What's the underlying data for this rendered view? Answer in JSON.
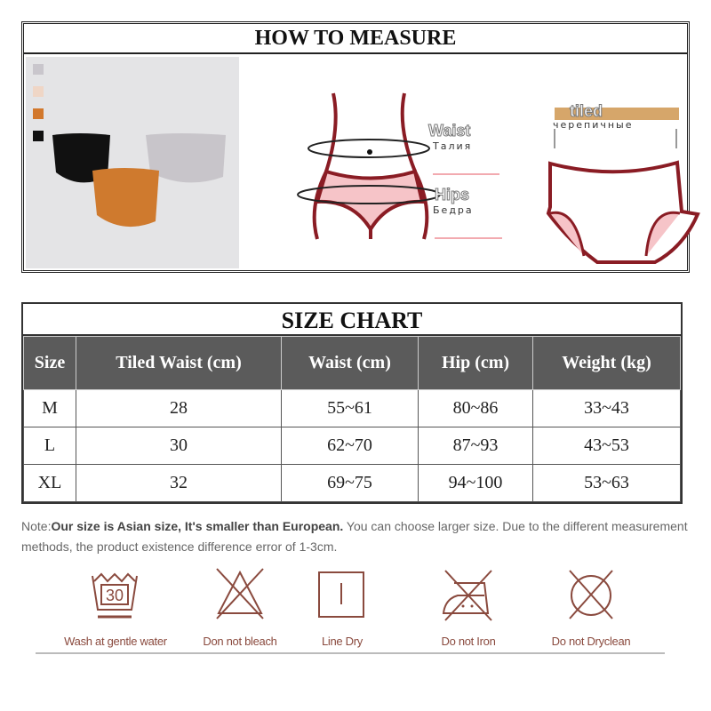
{
  "measure": {
    "title": "HOW TO MEASURE",
    "waist_label": "Waist",
    "waist_ru": "Талия",
    "hips_label": "Hips",
    "hips_ru": "Бедра",
    "tiled_label": "tiled",
    "tiled_ru": "черепичные",
    "swatch_colors": [
      "#c9c6cc",
      "#efd6c6",
      "#d2782c",
      "#111111"
    ]
  },
  "size_chart": {
    "title": "SIZE CHART",
    "headers": [
      "Size",
      "Tiled Waist (cm)",
      "Waist (cm)",
      "Hip (cm)",
      "Weight (kg)"
    ],
    "rows": [
      [
        "M",
        "28",
        "55~61",
        "80~86",
        "33~43"
      ],
      [
        "L",
        "30",
        "62~70",
        "87~93",
        "43~53"
      ],
      [
        "XL",
        "32",
        "69~75",
        "94~100",
        "53~63"
      ]
    ]
  },
  "note": {
    "prefix": "Note:",
    "bold": "Our size is Asian size, It's smaller than European.",
    "rest": " You can choose larger size. Due to the different measurement methods, the product existence difference error of 1-3cm."
  },
  "care": [
    {
      "icon": "wash-30-icon",
      "label": "Wash at gentle water",
      "temp": "30"
    },
    {
      "icon": "no-bleach-icon",
      "label": "Don not bleach"
    },
    {
      "icon": "line-dry-icon",
      "label": "Line Dry"
    },
    {
      "icon": "no-iron-icon",
      "label": "Do not Iron"
    },
    {
      "icon": "no-dryclean-icon",
      "label": "Do not Dryclean"
    }
  ],
  "colors": {
    "accent": "#8a1c24",
    "care": "#8a4a3e",
    "header_bg": "#5b5b5b"
  }
}
